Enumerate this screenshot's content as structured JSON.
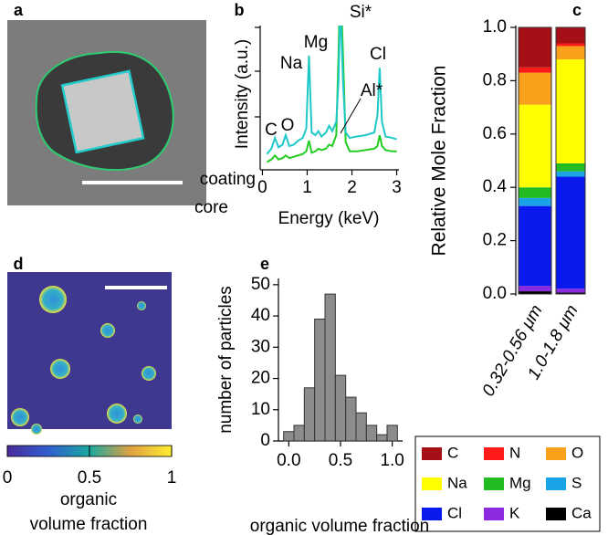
{
  "chart_data": [
    {
      "type": "image",
      "panel": "a"
    },
    {
      "type": "line",
      "panel": "b",
      "xlabel": "Energy (keV)",
      "ylabel": "Intensity (a.u.)",
      "x": [
        0.1,
        0.2,
        0.28,
        0.36,
        0.45,
        0.52,
        0.6,
        0.7,
        0.8,
        0.9,
        0.98,
        1.04,
        1.1,
        1.18,
        1.25,
        1.32,
        1.42,
        1.49,
        1.56,
        1.65,
        1.7,
        1.74,
        1.8,
        1.86,
        1.95,
        2.1,
        2.3,
        2.5,
        2.57,
        2.62,
        2.67,
        2.75,
        2.9,
        3.0
      ],
      "series": [
        {
          "name": "coating",
          "color": "#22cc22",
          "values": [
            0.0,
            0.2,
            0.5,
            0.2,
            0.3,
            0.5,
            0.3,
            0.4,
            0.5,
            0.6,
            0.8,
            1.6,
            0.7,
            0.8,
            1.0,
            0.9,
            1.0,
            1.3,
            1.2,
            2.0,
            8,
            14,
            8,
            1.5,
            0.8,
            0.8,
            0.9,
            1.0,
            1.2,
            2.0,
            1.2,
            0.9,
            0.8,
            0.8
          ]
        },
        {
          "name": "core",
          "color": "#1ec8c8",
          "values": [
            0.6,
            1.0,
            1.8,
            1.1,
            1.3,
            2.0,
            1.2,
            1.3,
            1.6,
            1.8,
            2.5,
            7.9,
            2.2,
            2.0,
            2.3,
            1.9,
            2.2,
            2.7,
            2.3,
            3.0,
            6,
            12,
            6,
            2.2,
            1.8,
            1.9,
            2.0,
            2.2,
            3.5,
            7.0,
            3.0,
            1.9,
            1.8,
            1.7
          ]
        }
      ],
      "xlim": [
        -0.05,
        3.05
      ],
      "xticks": [
        0,
        1,
        2,
        3
      ],
      "ylim": [
        -0.5,
        10
      ],
      "annotations": [
        "C",
        "O",
        "Na",
        "Mg",
        "Si*",
        "Cl",
        "Al*"
      ]
    },
    {
      "type": "stacked-bar",
      "panel": "c",
      "ylabel": "Relative Mole Fraction",
      "categories": [
        "0.32-0.56 μm",
        "1.0-1.8 μm"
      ],
      "series": [
        {
          "name": "C",
          "color": "#a50f15",
          "values": [
            0.15,
            0.06
          ]
        },
        {
          "name": "N",
          "color": "#ff1a1a",
          "values": [
            0.02,
            0.01
          ]
        },
        {
          "name": "O",
          "color": "#f9a11b",
          "values": [
            0.12,
            0.05
          ]
        },
        {
          "name": "Na",
          "color": "#ffff00",
          "values": [
            0.31,
            0.39
          ]
        },
        {
          "name": "Mg",
          "color": "#22bb22",
          "values": [
            0.04,
            0.03
          ]
        },
        {
          "name": "S",
          "color": "#1aa4e8",
          "values": [
            0.03,
            0.02
          ]
        },
        {
          "name": "Cl",
          "color": "#0a1aee",
          "values": [
            0.3,
            0.42
          ]
        },
        {
          "name": "K",
          "color": "#8a2be2",
          "values": [
            0.02,
            0.015
          ]
        },
        {
          "name": "Ca",
          "color": "#000000",
          "values": [
            0.01,
            0.005
          ]
        }
      ],
      "ylim": [
        0,
        1
      ],
      "yticks": [
        {
          "value": 0,
          "label": "0.0"
        },
        0.2,
        0.4,
        0.6,
        0.8,
        {
          "value": 1,
          "label": "1.0"
        }
      ]
    },
    {
      "type": "image",
      "panel": "d",
      "colorbar_label": [
        "organic",
        "volume fraction"
      ],
      "clim": [
        0,
        1
      ],
      "cticks": [
        0,
        0.5,
        1
      ]
    },
    {
      "type": "histogram",
      "panel": "e",
      "xlabel": "organic volume fraction",
      "ylabel": "number of particles",
      "bins": [
        -0.05,
        0.05,
        0.15,
        0.25,
        0.35,
        0.45,
        0.55,
        0.65,
        0.75,
        0.85,
        0.95,
        1.05
      ],
      "counts": [
        3,
        5,
        17,
        39,
        47,
        21,
        14,
        9,
        5,
        2,
        5
      ],
      "color": "#8c8c8c",
      "xlim": [
        -0.1,
        1.1
      ],
      "xticks": [
        {
          "value": 0,
          "label": "0.0"
        },
        0.5,
        {
          "value": 1,
          "label": "1.0"
        }
      ],
      "ylim": [
        0,
        52
      ],
      "yticks": [
        0,
        10,
        20,
        30,
        40,
        50
      ]
    }
  ]
}
